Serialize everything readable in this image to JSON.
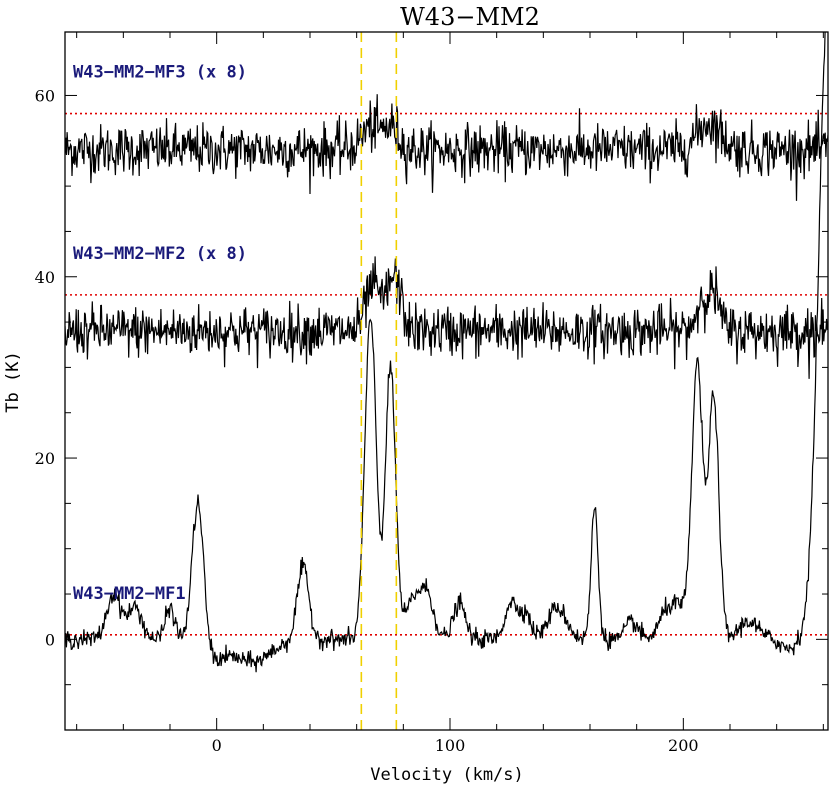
{
  "chart_data": {
    "type": "line",
    "title": "W43−MM2",
    "xlabel": "Velocity (km/s)",
    "ylabel": "Tb (K)",
    "xlim": [
      -65,
      262
    ],
    "ylim": [
      -10,
      67
    ],
    "x_ticks": [
      0,
      100,
      200
    ],
    "y_ticks": [
      0,
      20,
      40,
      60
    ],
    "grid": false,
    "colors": {
      "spectrum": "#000000",
      "baseline": "#e00000",
      "velocity_marker": "#f0d000",
      "label": "#1a1a7a"
    },
    "vertical_markers": [
      62,
      77
    ],
    "series": [
      {
        "name": "W43−MM2−MF3 (x 8)",
        "baseline": 58,
        "offset": 54,
        "noise": 1.4,
        "peaks": [
          [
            66,
            2.5,
            4
          ],
          [
            75,
            2.5,
            3
          ],
          [
            211,
            3,
            5
          ]
        ]
      },
      {
        "name": "W43−MM2−MF2 (x 8)",
        "baseline": 38,
        "offset": 34,
        "noise": 1.4,
        "peaks": [
          [
            67,
            5,
            3
          ],
          [
            76,
            6,
            3
          ],
          [
            209,
            4,
            3
          ],
          [
            214,
            3,
            2
          ]
        ]
      },
      {
        "name": "W43−MM2−MF1",
        "baseline": 0.5,
        "offset": 0,
        "noise": 0.5,
        "peaks": [
          [
            -44,
            5,
            3
          ],
          [
            -35,
            3.5,
            3
          ],
          [
            -20,
            3.5,
            2
          ],
          [
            -8,
            16,
            2.5
          ],
          [
            -2,
            -2,
            5
          ],
          [
            15,
            -2.5,
            8
          ],
          [
            37,
            8,
            2.5
          ],
          [
            64,
            10,
            2
          ],
          [
            66.5,
            30,
            2.2
          ],
          [
            74.5,
            30,
            2.2
          ],
          [
            84,
            4,
            3
          ],
          [
            90,
            5,
            3
          ],
          [
            104,
            4,
            2.5
          ],
          [
            126,
            4,
            2.5
          ],
          [
            132,
            3,
            2.5
          ],
          [
            146,
            3.5,
            4
          ],
          [
            162,
            14.5,
            1.5
          ],
          [
            178,
            2,
            2.5
          ],
          [
            192,
            2,
            3
          ],
          [
            198,
            3.5,
            4
          ],
          [
            206,
            30,
            2.3
          ],
          [
            213,
            27,
            2.2
          ],
          [
            228,
            2,
            4
          ],
          [
            245,
            -1,
            3
          ],
          [
            262,
            70,
            4
          ]
        ]
      }
    ]
  }
}
